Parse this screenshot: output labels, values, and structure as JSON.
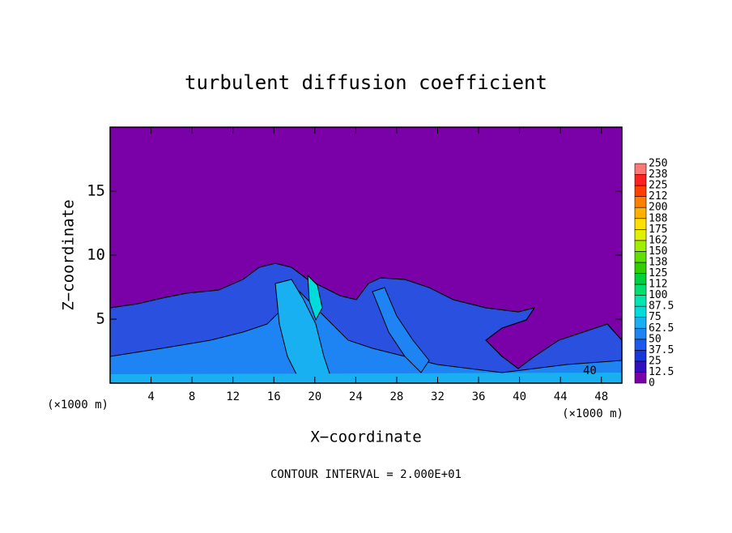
{
  "chart_data": {
    "type": "contour",
    "title": "turbulent diffusion coefficient",
    "x_label": "X−coordinate",
    "y_label": "Z−coordinate",
    "x_unit_label": "(×1000 m)",
    "annotation": "CONTOUR INTERVAL = 2.000E+01",
    "contour_label": "40",
    "xlim": [
      0,
      50
    ],
    "ylim": [
      0,
      20
    ],
    "xticks": [
      4,
      8,
      12,
      16,
      20,
      24,
      28,
      32,
      36,
      40,
      44,
      48
    ],
    "yticks": [
      5,
      10,
      15
    ],
    "colorbar": {
      "levels": [
        0,
        12.5,
        25,
        37.5,
        50,
        62.5,
        75,
        87.5,
        100,
        {
          "value": 112.5,
          "label": "112"
        },
        125,
        {
          "value": 137.5,
          "label": "138"
        },
        150,
        {
          "value": 162.5,
          "label": "162"
        },
        175,
        {
          "value": 187.5,
          "label": "188"
        },
        200,
        {
          "value": 212.5,
          "label": "212"
        },
        225,
        {
          "value": 237.5,
          "label": "238"
        },
        250
      ],
      "colors": [
        "#7a00a8",
        "#3010c0",
        "#1a38d8",
        "#1e58ec",
        "#1e84f4",
        "#18b0f0",
        "#00dcdc",
        "#00e6b0",
        "#00e070",
        "#00d040",
        "#30d000",
        "#60e000",
        "#a0ee00",
        "#e0f000",
        "#ffe000",
        "#ffb000",
        "#ff8000",
        "#ff4000",
        "#ff2020",
        "#ff7878"
      ]
    }
  }
}
